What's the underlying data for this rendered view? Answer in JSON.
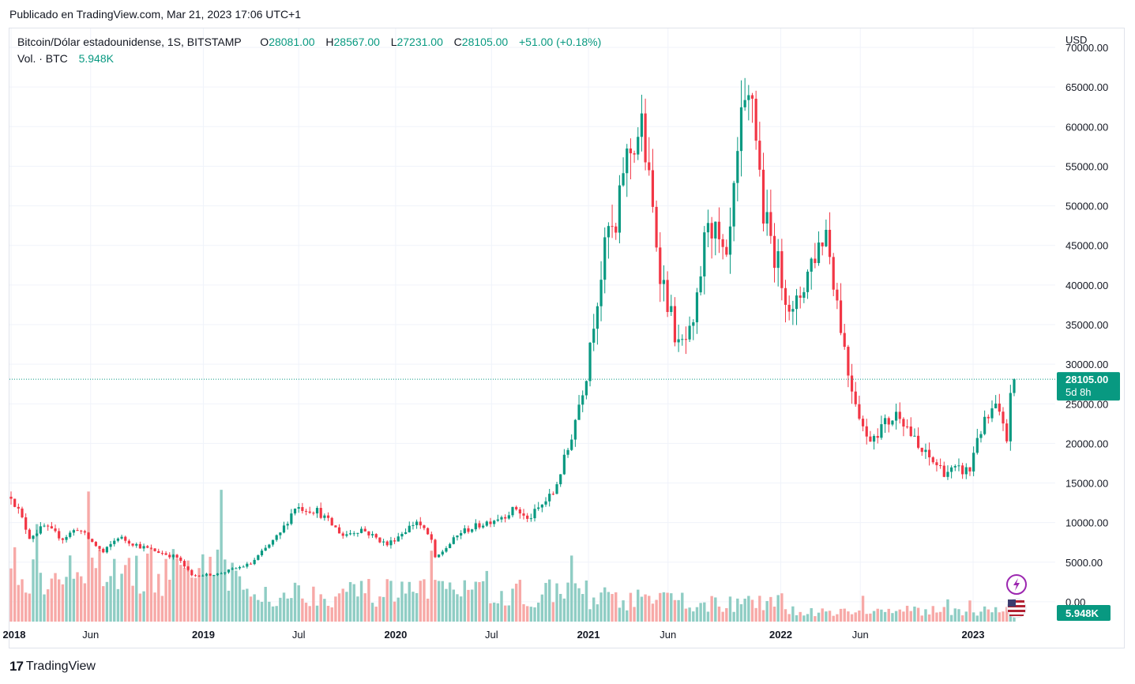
{
  "header": {
    "published": "Publicado en TradingView.com, Mar 21, 2023 17:06 UTC+1"
  },
  "legend": {
    "symbol": "Bitcoin/Dólar estadounidense, 1S, BITSTAMP",
    "o_label": "O",
    "o_value": "28081.00",
    "h_label": "H",
    "h_value": "28567.00",
    "l_label": "L",
    "l_value": "27231.00",
    "c_label": "C",
    "c_value": "28105.00",
    "change": "+51.00 (+0.18%)",
    "vol_label": "Vol. · BTC",
    "vol_value": "5.948K"
  },
  "price_axis": {
    "currency": "USD",
    "last_price_label": "28105.00",
    "countdown_label": "5d 8h",
    "last_volume_label": "5.948K"
  },
  "footer": {
    "brand": "TradingView",
    "logo_text": "17"
  },
  "colors": {
    "up": "#089981",
    "down": "#f23645",
    "up_vol": "#8fcdc4",
    "down_vol": "#f7a9a7",
    "grid": "#f0f3fa"
  },
  "chart_data": {
    "type": "candlestick",
    "interval": "1W",
    "ylim": [
      -2500,
      71500
    ],
    "y_ticks": [
      "70000.00",
      "65000.00",
      "60000.00",
      "55000.00",
      "50000.00",
      "45000.00",
      "40000.00",
      "35000.00",
      "30000.00",
      "25000.00",
      "20000.00",
      "15000.00",
      "10000.00",
      "5000.00",
      "0.00"
    ],
    "x_ticks": [
      "2018",
      "Jun",
      "2019",
      "Jul",
      "2020",
      "Jul",
      "2021",
      "Jun",
      "2022",
      "Jun",
      "2023"
    ],
    "series": [
      {
        "name": "Bitcoin/Dólar estadounidense",
        "anchors_date": [
          "2018-01-01",
          "2018-01-15",
          "2018-02-05",
          "2018-03-05",
          "2018-04-09",
          "2018-05-07",
          "2018-06-25",
          "2018-07-23",
          "2018-09-03",
          "2018-11-12",
          "2018-12-10",
          "2019-01-28",
          "2019-04-01",
          "2019-05-27",
          "2019-06-24",
          "2019-08-05",
          "2019-09-23",
          "2019-10-28",
          "2019-12-16",
          "2020-02-10",
          "2020-03-09",
          "2020-03-16",
          "2020-05-04",
          "2020-06-01",
          "2020-07-27",
          "2020-08-17",
          "2020-09-07",
          "2020-10-26",
          "2020-11-23",
          "2020-12-28",
          "2021-01-04",
          "2021-02-08",
          "2021-02-22",
          "2021-03-08",
          "2021-04-12",
          "2021-05-17",
          "2021-06-21",
          "2021-07-19",
          "2021-08-16",
          "2021-09-20",
          "2021-10-18",
          "2021-11-08",
          "2021-11-29",
          "2022-01-24",
          "2022-02-28",
          "2022-03-28",
          "2022-05-09",
          "2022-06-13",
          "2022-08-15",
          "2022-09-19",
          "2022-11-07",
          "2022-12-26",
          "2023-01-09",
          "2023-02-13",
          "2023-03-06",
          "2023-03-13",
          "2023-03-20"
        ],
        "anchors_close": [
          13500,
          11500,
          8200,
          9500,
          8000,
          9300,
          6200,
          8200,
          7000,
          5600,
          3300,
          3500,
          4800,
          8600,
          12000,
          11500,
          8400,
          9200,
          7200,
          10200,
          7800,
          5400,
          8800,
          9500,
          11000,
          11800,
          10300,
          13700,
          19200,
          29000,
          33000,
          47000,
          46000,
          55000,
          60000,
          42000,
          32000,
          34000,
          49000,
          42000,
          60000,
          64000,
          49000,
          36000,
          43000,
          47000,
          29000,
          20500,
          24000,
          19300,
          16500,
          16600,
          21000,
          24500,
          20500,
          26900,
          28105
        ]
      },
      {
        "name": "Vol. · BTC",
        "last": 5.948
      }
    ]
  }
}
